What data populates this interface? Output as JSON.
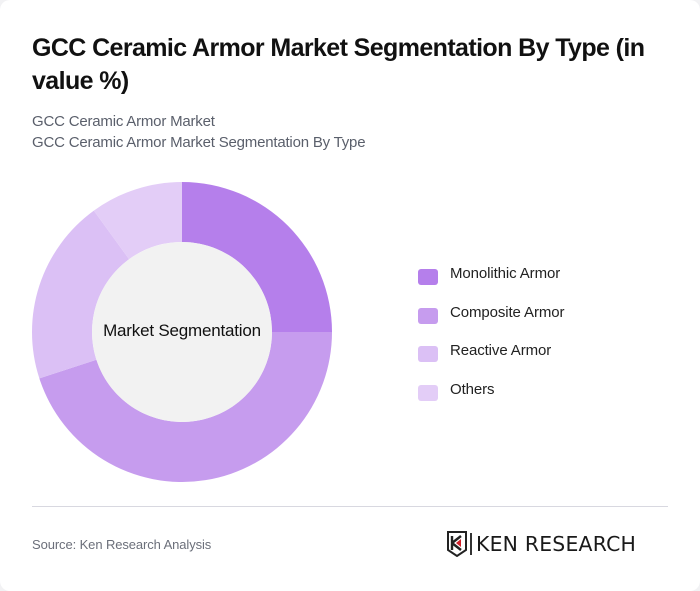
{
  "title": "GCC Ceramic Armor Market Segmentation By Type (in value %)",
  "subtitles": [
    "GCC Ceramic Armor Market",
    "GCC Ceramic Armor Market Segmentation By Type"
  ],
  "center_label": "Market Segmentation",
  "legend": [
    {
      "label": "Monolithic Armor",
      "color": "#b57feb"
    },
    {
      "label": "Composite Armor",
      "color": "#c69cee"
    },
    {
      "label": "Reactive Armor",
      "color": "#dbc0f5"
    },
    {
      "label": "Others",
      "color": "#e3cdf7"
    }
  ],
  "footer": {
    "source": "Source: Ken Research Analysis",
    "logo_text": "KEN RESEARCH"
  },
  "chart_data": {
    "type": "pie",
    "variant": "donut",
    "title": "GCC Ceramic Armor Market Segmentation By Type (in value %)",
    "center_text": "Market Segmentation",
    "categories": [
      "Monolithic Armor",
      "Composite Armor",
      "Reactive Armor",
      "Others"
    ],
    "values": [
      25,
      45,
      20,
      10
    ],
    "colors": [
      "#b57feb",
      "#c69cee",
      "#dbc0f5",
      "#e3cdf7"
    ],
    "legend_position": "right",
    "start_angle": "12 o'clock, clockwise"
  }
}
